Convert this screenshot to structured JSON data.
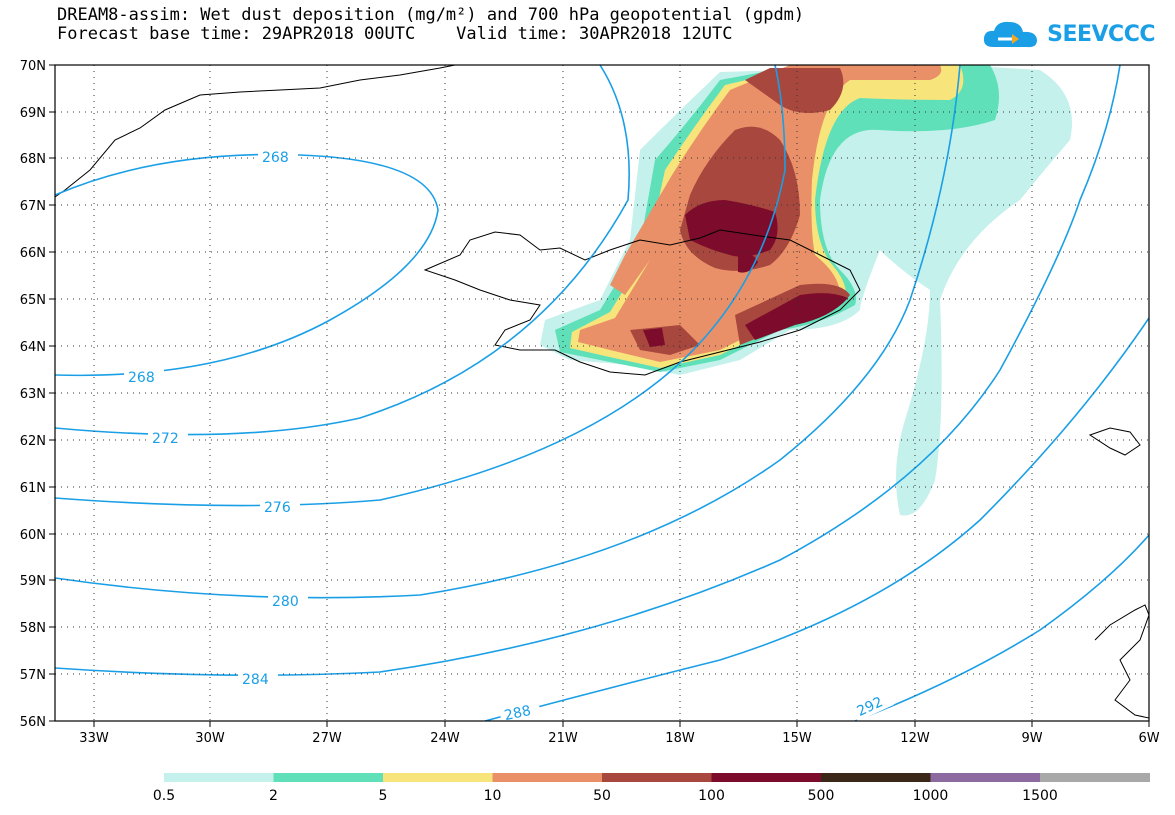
{
  "title": {
    "line1": "DREAM8-assim: Wet dust deposition (mg/m²) and 700 hPa geopotential (gpdm)",
    "line2": "Forecast base time: 29APR2018 00UTC    Valid time: 30APR2018 12UTC"
  },
  "logo": {
    "text": "SEEVCCC",
    "icon": "cloud-arrow-icon"
  },
  "axes": {
    "lat_ticks": [
      "70N",
      "69N",
      "68N",
      "67N",
      "66N",
      "65N",
      "64N",
      "63N",
      "62N",
      "61N",
      "60N",
      "59N",
      "58N",
      "57N",
      "56N"
    ],
    "lon_ticks": [
      "33W",
      "30W",
      "27W",
      "24W",
      "21W",
      "18W",
      "15W",
      "12W",
      "9W",
      "6W"
    ]
  },
  "contour_labels": [
    "268",
    "268",
    "272",
    "276",
    "280",
    "284",
    "288",
    "292"
  ],
  "legend": {
    "levels": [
      "0.5",
      "2",
      "5",
      "10",
      "50",
      "100",
      "500",
      "1000",
      "1500"
    ],
    "colors": [
      "#c4f1ec",
      "#5fe0b9",
      "#f7e57c",
      "#ea9068",
      "#a8473d",
      "#7c0b2c",
      "#3b2717",
      "#8c6aa0",
      "#a8a8a8"
    ]
  }
}
